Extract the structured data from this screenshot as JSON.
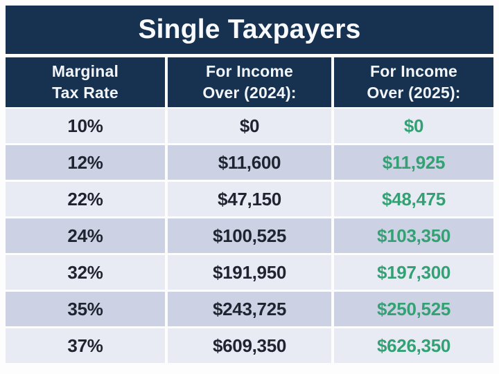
{
  "title": "Single Taxpayers",
  "colors": {
    "navy": "#173250",
    "row_light": "#e9ebf4",
    "row_dark": "#ccd2e3",
    "green": "#33a173",
    "dark_text": "#1f2430"
  },
  "table": {
    "columns": [
      {
        "id": "rate",
        "label": "Marginal\nTax Rate"
      },
      {
        "id": "income_2024",
        "label": "For Income\nOver (2024):"
      },
      {
        "id": "income_2025",
        "label": "For Income\nOver (2025):"
      }
    ],
    "rows": [
      {
        "rate": "10%",
        "income_2024": "$0",
        "income_2025": "$0"
      },
      {
        "rate": "12%",
        "income_2024": "$11,600",
        "income_2025": "$11,925"
      },
      {
        "rate": "22%",
        "income_2024": "$47,150",
        "income_2025": "$48,475"
      },
      {
        "rate": "24%",
        "income_2024": "$100,525",
        "income_2025": "$103,350"
      },
      {
        "rate": "32%",
        "income_2024": "$191,950",
        "income_2025": "$197,300"
      },
      {
        "rate": "35%",
        "income_2024": "$243,725",
        "income_2025": "$250,525"
      },
      {
        "rate": "37%",
        "income_2024": "$609,350",
        "income_2025": "$626,350"
      }
    ]
  },
  "chart_data": {
    "type": "table",
    "title": "Single Taxpayers",
    "columns": [
      "Marginal Tax Rate",
      "For Income Over (2024):",
      "For Income Over (2025):"
    ],
    "rows": [
      [
        "10%",
        "$0",
        "$0"
      ],
      [
        "12%",
        "$11,600",
        "$11,925"
      ],
      [
        "22%",
        "$47,150",
        "$48,475"
      ],
      [
        "24%",
        "$100,525",
        "$103,350"
      ],
      [
        "32%",
        "$191,950",
        "$197,300"
      ],
      [
        "35%",
        "$243,725",
        "$250,525"
      ],
      [
        "37%",
        "$609,350",
        "$626,350"
      ]
    ],
    "notes": "2025 column values rendered in green; rows alternate light/dark lavender backgrounds"
  }
}
